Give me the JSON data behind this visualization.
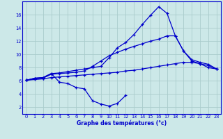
{
  "xlabel": "Graphe des températures (°c)",
  "bg_color": "#cce8e8",
  "line_color": "#0000cc",
  "grid_color": "#aacccc",
  "xlim": [
    -0.5,
    23.5
  ],
  "ylim": [
    1,
    18
  ],
  "xticks": [
    0,
    1,
    2,
    3,
    4,
    5,
    6,
    7,
    8,
    9,
    10,
    11,
    12,
    13,
    14,
    15,
    16,
    17,
    18,
    19,
    20,
    21,
    22,
    23
  ],
  "yticks": [
    2,
    4,
    6,
    8,
    10,
    12,
    14,
    16
  ],
  "line1_x": [
    0,
    1,
    2,
    3,
    4,
    5,
    6,
    7,
    8,
    9,
    10,
    11,
    12
  ],
  "line1_y": [
    6.1,
    6.4,
    6.5,
    7.1,
    5.8,
    5.6,
    5.0,
    4.8,
    3.0,
    2.5,
    2.2,
    2.6,
    3.8
  ],
  "line2_x": [
    0,
    1,
    2,
    3,
    4,
    5,
    6,
    7,
    8,
    9,
    10,
    11,
    12,
    13,
    14,
    15,
    16,
    17,
    18,
    19,
    20,
    21,
    22,
    23
  ],
  "line2_y": [
    6.1,
    6.4,
    6.5,
    7.1,
    7.2,
    7.4,
    7.6,
    7.8,
    8.0,
    8.2,
    9.5,
    11.0,
    11.8,
    13.0,
    14.5,
    15.9,
    17.2,
    16.2,
    12.8,
    10.5,
    9.0,
    8.6,
    8.0,
    7.8
  ],
  "line3_x": [
    0,
    1,
    2,
    3,
    4,
    5,
    6,
    7,
    8,
    9,
    10,
    11,
    12,
    13,
    14,
    15,
    16,
    17,
    18,
    19,
    20,
    21,
    22,
    23
  ],
  "line3_y": [
    6.1,
    6.3,
    6.4,
    7.0,
    7.1,
    7.2,
    7.3,
    7.5,
    8.2,
    9.0,
    9.8,
    10.3,
    10.8,
    11.2,
    11.6,
    12.0,
    12.3,
    12.8,
    12.8,
    10.5,
    9.2,
    8.8,
    8.5,
    7.8
  ],
  "line4_x": [
    0,
    1,
    2,
    3,
    4,
    5,
    6,
    7,
    8,
    9,
    10,
    11,
    12,
    13,
    14,
    15,
    16,
    17,
    18,
    19,
    20,
    21,
    22,
    23
  ],
  "line4_y": [
    6.1,
    6.2,
    6.3,
    6.5,
    6.6,
    6.7,
    6.8,
    6.9,
    7.0,
    7.1,
    7.2,
    7.3,
    7.5,
    7.6,
    7.8,
    8.0,
    8.2,
    8.4,
    8.6,
    8.8,
    8.8,
    8.6,
    8.3,
    7.8
  ]
}
